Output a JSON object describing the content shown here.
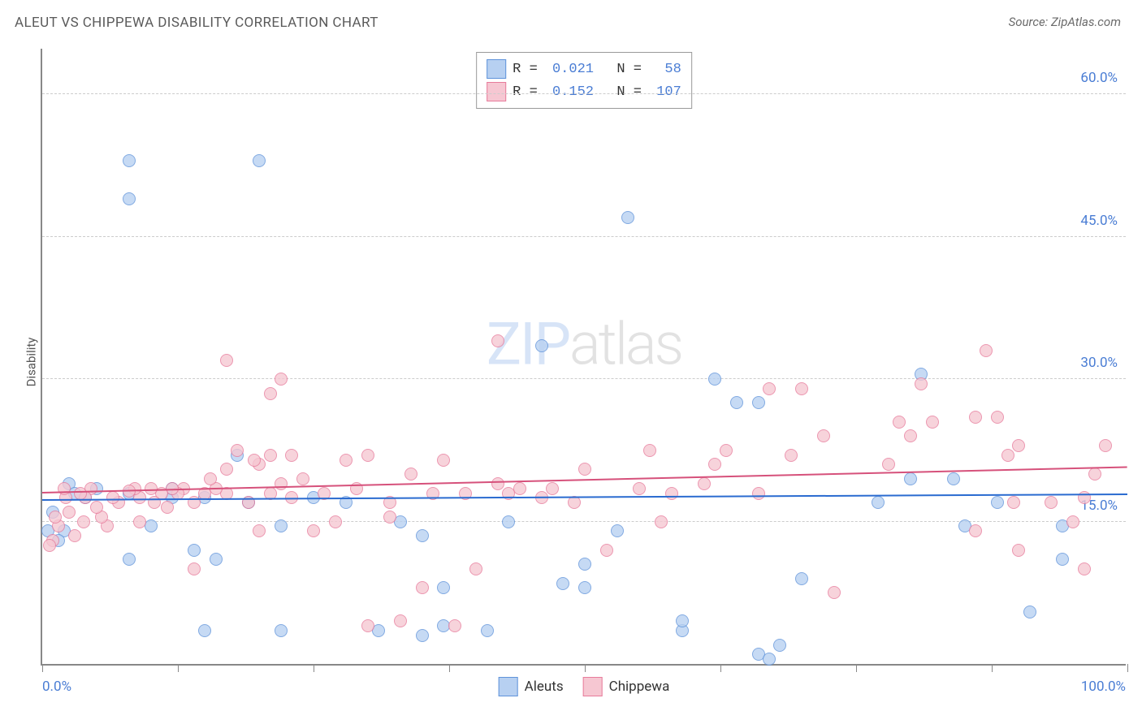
{
  "title": "ALEUT VS CHIPPEWA DISABILITY CORRELATION CHART",
  "source": "Source: ZipAtlas.com",
  "ylabel": "Disability",
  "watermark": {
    "part1": "ZIP",
    "part2": "atlas"
  },
  "chart": {
    "type": "scatter",
    "xlim": [
      0,
      100
    ],
    "ylim": [
      0,
      65
    ],
    "y_ticks": [
      15,
      30,
      45,
      60
    ],
    "y_tick_labels": [
      "15.0%",
      "30.0%",
      "45.0%",
      "60.0%"
    ],
    "x_tick_positions": [
      0,
      12.5,
      25,
      37.5,
      50,
      62.5,
      75,
      87.5,
      100
    ],
    "x_axis_labels": {
      "left": "0.0%",
      "right": "100.0%"
    },
    "grid_color": "#cccccc",
    "axis_color": "#888888",
    "background_color": "#ffffff",
    "point_radius": 8,
    "point_opacity": 0.78,
    "series": [
      {
        "name": "Aleuts",
        "fill": "#b7d0f1",
        "stroke": "#5f93da",
        "legend_swatch_fill": "#b7d0f1",
        "legend_swatch_stroke": "#5f93da",
        "trend": {
          "color": "#2a6bd0",
          "y_at_x0": 17.2,
          "y_at_x100": 17.8
        },
        "stats": {
          "R": "0.021",
          "N": "58"
        },
        "points": [
          [
            8,
            53
          ],
          [
            8,
            49
          ],
          [
            20,
            53
          ],
          [
            54,
            47
          ],
          [
            46,
            33.5
          ],
          [
            62,
            30
          ],
          [
            64,
            27.5
          ],
          [
            66,
            27.5
          ],
          [
            81,
            30.5
          ],
          [
            80,
            19.5
          ],
          [
            84,
            19.5
          ],
          [
            88,
            17
          ],
          [
            85,
            14.5
          ],
          [
            94,
            14.5
          ],
          [
            94,
            11
          ],
          [
            91,
            5.5
          ],
          [
            59,
            3.5
          ],
          [
            68,
            2
          ],
          [
            66,
            1
          ],
          [
            70,
            9
          ],
          [
            50,
            10.5
          ],
          [
            50,
            8
          ],
          [
            53,
            14
          ],
          [
            43,
            15
          ],
          [
            35,
            13.5
          ],
          [
            33,
            15
          ],
          [
            37,
            4
          ],
          [
            37,
            8
          ],
          [
            35,
            3
          ],
          [
            41,
            3.5
          ],
          [
            22,
            14.5
          ],
          [
            18,
            22
          ],
          [
            22,
            3.5
          ],
          [
            12,
            17.5
          ],
          [
            15,
            3.5
          ],
          [
            14,
            12
          ],
          [
            16,
            11
          ],
          [
            10,
            14.5
          ],
          [
            8,
            11
          ],
          [
            4,
            17.5
          ],
          [
            2.5,
            19
          ],
          [
            2,
            14
          ],
          [
            3,
            18
          ],
          [
            5,
            18.5
          ],
          [
            1,
            16
          ],
          [
            1.5,
            13
          ],
          [
            0.5,
            14
          ],
          [
            8,
            18
          ],
          [
            12,
            18.5
          ],
          [
            15,
            17.5
          ],
          [
            19,
            17
          ],
          [
            25,
            17.5
          ],
          [
            28,
            17
          ],
          [
            31,
            3.5
          ],
          [
            59,
            4.5
          ],
          [
            48,
            8.5
          ],
          [
            77,
            17
          ],
          [
            67,
            0.5
          ]
        ]
      },
      {
        "name": "Chippewa",
        "fill": "#f6c7d2",
        "stroke": "#e77b9b",
        "legend_swatch_fill": "#f6c7d2",
        "legend_swatch_stroke": "#e77b9b",
        "trend": {
          "color": "#d6517b",
          "y_at_x0": 18.0,
          "y_at_x100": 20.7
        },
        "stats": {
          "R": "0.152",
          "N": "107"
        },
        "points": [
          [
            42,
            34
          ],
          [
            17,
            32
          ],
          [
            21,
            28.5
          ],
          [
            22,
            30
          ],
          [
            67,
            29
          ],
          [
            70,
            29
          ],
          [
            81,
            29.5
          ],
          [
            87,
            33
          ],
          [
            86,
            26
          ],
          [
            79,
            25.5
          ],
          [
            80,
            24
          ],
          [
            82,
            25.5
          ],
          [
            78,
            21
          ],
          [
            88,
            26
          ],
          [
            90,
            23
          ],
          [
            89.5,
            17
          ],
          [
            93,
            17
          ],
          [
            96,
            17.5
          ],
          [
            98,
            23
          ],
          [
            97,
            20
          ],
          [
            95,
            15
          ],
          [
            96,
            10
          ],
          [
            90,
            12
          ],
          [
            86,
            14
          ],
          [
            89,
            22
          ],
          [
            72,
            24
          ],
          [
            73,
            7.5
          ],
          [
            69,
            22
          ],
          [
            66,
            18
          ],
          [
            63,
            22.5
          ],
          [
            62,
            21
          ],
          [
            61,
            19
          ],
          [
            58,
            18
          ],
          [
            57,
            15
          ],
          [
            56,
            22.5
          ],
          [
            55,
            18.5
          ],
          [
            50,
            20.5
          ],
          [
            52,
            12
          ],
          [
            49,
            17
          ],
          [
            47,
            18.5
          ],
          [
            46,
            17.5
          ],
          [
            44,
            18.5
          ],
          [
            43,
            18
          ],
          [
            42,
            19
          ],
          [
            40,
            10
          ],
          [
            39,
            18
          ],
          [
            38,
            4
          ],
          [
            37,
            21.5
          ],
          [
            36,
            18
          ],
          [
            35,
            8
          ],
          [
            34,
            20
          ],
          [
            33,
            4.5
          ],
          [
            32,
            15.5
          ],
          [
            32,
            17
          ],
          [
            30,
            22
          ],
          [
            30,
            4
          ],
          [
            29,
            18.5
          ],
          [
            28,
            21.5
          ],
          [
            27,
            15
          ],
          [
            26,
            18
          ],
          [
            25,
            14
          ],
          [
            24,
            19.5
          ],
          [
            23,
            22
          ],
          [
            23,
            17.5
          ],
          [
            22,
            19
          ],
          [
            21,
            22
          ],
          [
            21,
            18
          ],
          [
            20,
            14
          ],
          [
            20,
            21
          ],
          [
            19.5,
            21.5
          ],
          [
            19,
            17
          ],
          [
            18,
            22.5
          ],
          [
            17,
            20.5
          ],
          [
            17,
            18
          ],
          [
            16,
            18.5
          ],
          [
            15.5,
            19.5
          ],
          [
            15,
            18
          ],
          [
            14,
            17
          ],
          [
            14,
            10
          ],
          [
            13,
            18.5
          ],
          [
            12.5,
            18
          ],
          [
            12,
            18.5
          ],
          [
            11.5,
            16.5
          ],
          [
            11,
            18
          ],
          [
            10,
            18.5
          ],
          [
            10.3,
            17
          ],
          [
            9,
            17.5
          ],
          [
            9,
            15
          ],
          [
            8.5,
            18.5
          ],
          [
            8,
            18.2
          ],
          [
            7,
            17
          ],
          [
            6.5,
            17.5
          ],
          [
            6,
            14.5
          ],
          [
            5.5,
            15.5
          ],
          [
            5,
            16.5
          ],
          [
            4.5,
            18.5
          ],
          [
            4,
            17.5
          ],
          [
            3.8,
            15
          ],
          [
            3.5,
            18
          ],
          [
            3,
            13.5
          ],
          [
            2.5,
            16
          ],
          [
            2.2,
            17.5
          ],
          [
            2,
            18.5
          ],
          [
            1.5,
            14.5
          ],
          [
            1.2,
            15.5
          ],
          [
            1,
            13
          ],
          [
            0.7,
            12.5
          ]
        ]
      }
    ]
  },
  "legend_top": {
    "row1": {
      "labels": [
        "R = ",
        "  N = "
      ],
      "values": [
        "0.021",
        " 58"
      ]
    },
    "row2": {
      "labels": [
        "R = ",
        "  N = "
      ],
      "values": [
        "0.152",
        "107"
      ]
    }
  },
  "legend_bottom": [
    {
      "label": "Aleuts",
      "fill": "#b7d0f1",
      "stroke": "#5f93da"
    },
    {
      "label": "Chippewa",
      "fill": "#f6c7d2",
      "stroke": "#e77b9b"
    }
  ],
  "label_color": "#4a7dd4"
}
